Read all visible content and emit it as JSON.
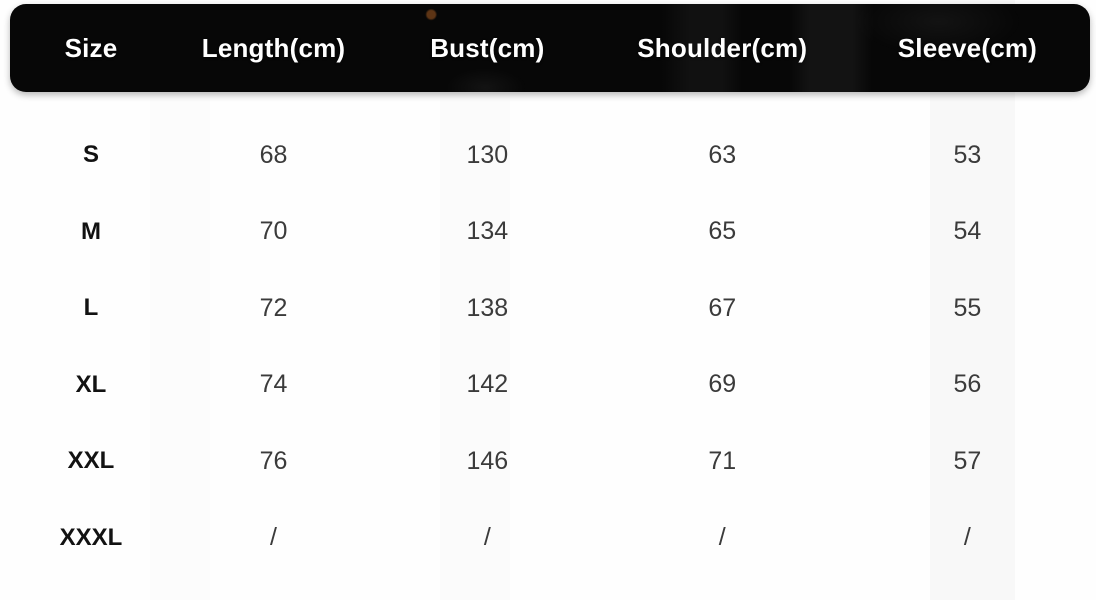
{
  "table": {
    "columns": [
      "Size",
      "Length(cm)",
      "Bust(cm)",
      "Shoulder(cm)",
      "Sleeve(cm)"
    ],
    "rows": [
      {
        "size": "S",
        "values": [
          "68",
          "130",
          "63",
          "53"
        ]
      },
      {
        "size": "M",
        "values": [
          "70",
          "134",
          "65",
          "54"
        ]
      },
      {
        "size": "L",
        "values": [
          "72",
          "138",
          "67",
          "55"
        ]
      },
      {
        "size": "XL",
        "values": [
          "74",
          "142",
          "69",
          "56"
        ]
      },
      {
        "size": "XXL",
        "values": [
          "76",
          "146",
          "71",
          "57"
        ]
      },
      {
        "size": "XXXL",
        "values": [
          "/",
          "/",
          "/",
          "/"
        ]
      }
    ]
  },
  "colors": {
    "header_bg": "#070707",
    "header_text": "#ffffff",
    "body_text": "#3b3b3b",
    "size_label_text": "#121212",
    "page_bg": "#fefefe"
  }
}
